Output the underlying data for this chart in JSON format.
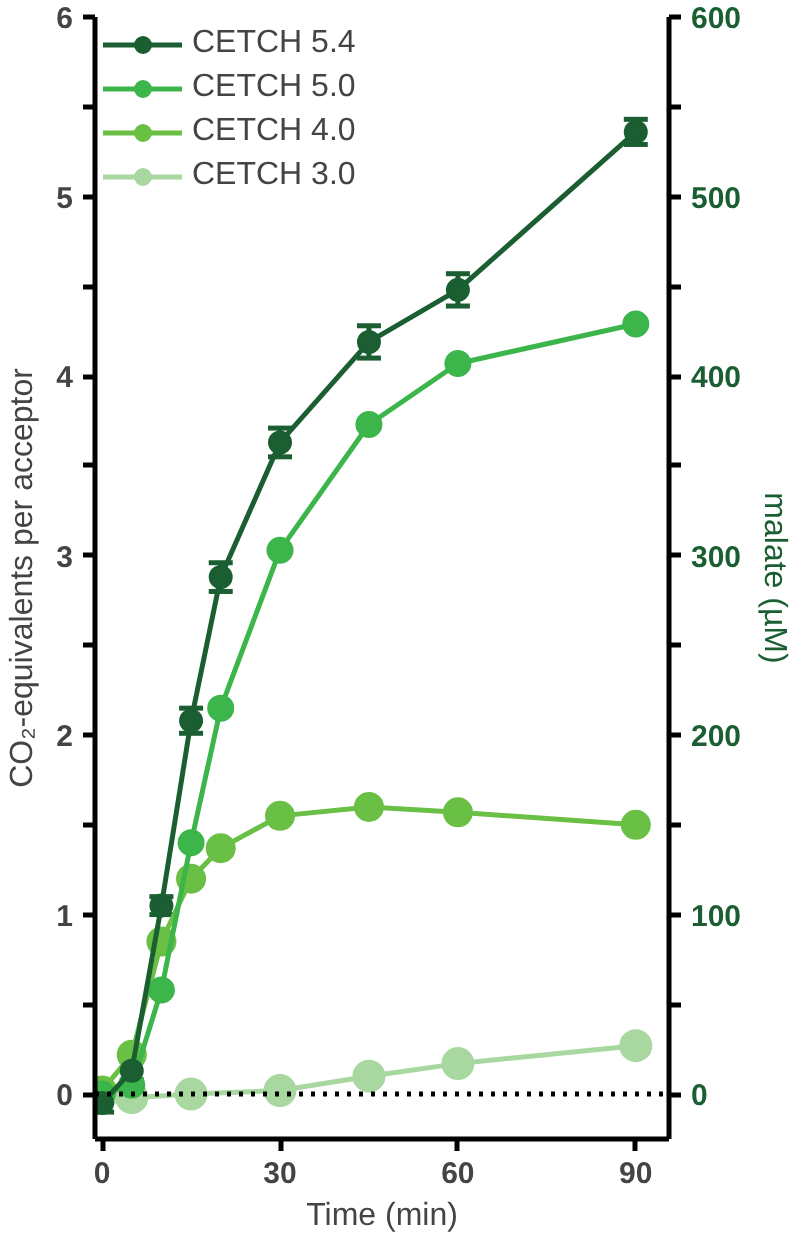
{
  "chart_data": {
    "type": "line",
    "xlabel": "Time (min)",
    "ylabel": "CO₂-equivalents per acceptor",
    "y2label": "malate (µM)",
    "xlim": [
      -1.2,
      95.6
    ],
    "xticks": [
      0,
      30,
      60,
      90
    ],
    "ylim": [
      -0.25,
      6
    ],
    "yticks": [
      0,
      {
        "value": 0.5,
        "label": null
      },
      1,
      {
        "value": 1.5,
        "label": null
      },
      2,
      {
        "value": 2.5,
        "label": null
      },
      3,
      {
        "value": 3.5,
        "label": null
      },
      4,
      {
        "value": 4.5,
        "label": null
      },
      5,
      {
        "value": 5.5,
        "label": null
      },
      6
    ],
    "y2lim": [
      -25,
      600
    ],
    "y2ticks": [
      0,
      {
        "value": 50,
        "label": null
      },
      100,
      {
        "value": 150,
        "label": null
      },
      200,
      {
        "value": 250,
        "label": null
      },
      300,
      {
        "value": 350,
        "label": null
      },
      400,
      {
        "value": 450,
        "label": null
      },
      500,
      {
        "value": 550,
        "label": null
      },
      600
    ],
    "marker": "circle",
    "line_style": "solid",
    "grid": false,
    "legend": "top left",
    "ref_lines": [
      {
        "axis": "y",
        "value": 0,
        "color": "#000000",
        "line_style": "dotted"
      }
    ],
    "series": [
      {
        "name": "CETCH 5.4",
        "color": "#1a5e32",
        "x": [
          0,
          5,
          10,
          15,
          20,
          30,
          45,
          60,
          90
        ],
        "values": [
          -0.05,
          0.13,
          1.05,
          2.08,
          2.88,
          3.63,
          4.19,
          4.48,
          5.36
        ],
        "errors": [
          0.05,
          0.05,
          0.05,
          0.07,
          0.08,
          0.08,
          0.09,
          0.09,
          0.07
        ]
      },
      {
        "name": "CETCH 5.0",
        "color": "#3cb54a",
        "x": [
          0,
          5,
          10,
          15,
          20,
          30,
          45,
          60,
          90
        ],
        "values": [
          0.0,
          0.05,
          0.58,
          1.4,
          2.15,
          3.03,
          3.73,
          4.07,
          4.29
        ]
      },
      {
        "name": "CETCH 4.0",
        "color": "#6abf45",
        "x": [
          0,
          5,
          10,
          15,
          20,
          30,
          45,
          60,
          90
        ],
        "values": [
          0.02,
          0.22,
          0.85,
          1.2,
          1.37,
          1.55,
          1.6,
          1.57,
          1.5
        ]
      },
      {
        "name": "CETCH 3.0",
        "color": "#a8d8a0",
        "x": [
          0,
          5,
          15,
          30,
          45,
          60,
          90
        ],
        "values": [
          0.0,
          -0.02,
          0.0,
          0.02,
          0.1,
          0.17,
          0.27
        ]
      }
    ]
  }
}
